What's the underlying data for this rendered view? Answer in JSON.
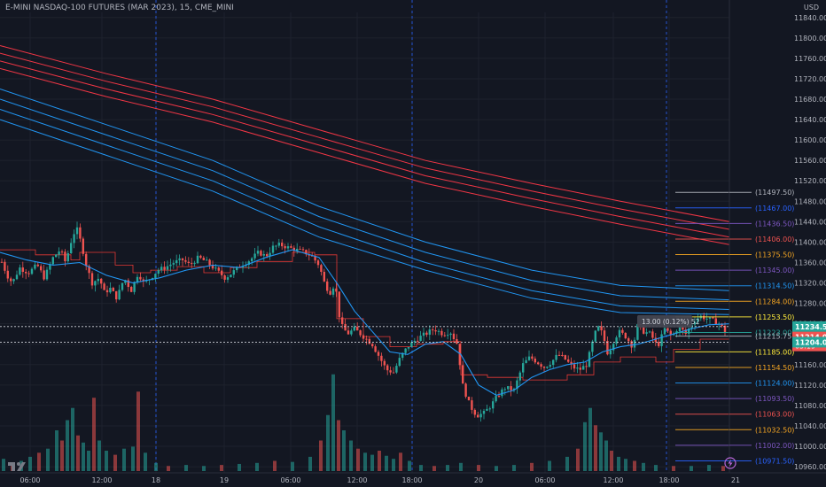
{
  "header": {
    "symbol_title": "E-MINI NASDAQ-100 FUTURES (MAR 2023), 15, CME_MINI",
    "currency": "USD"
  },
  "colors": {
    "background": "#131722",
    "bull": "#26a69a",
    "bear": "#ef5350",
    "ema_red": "#f23645",
    "ema_blue": "#2196f3",
    "vwap": "#e53935",
    "gold": "#f5a623",
    "yellow": "#ffeb3b",
    "purple": "#7e57c2",
    "session_line": "#2962ff"
  },
  "chart_data": {
    "type": "candlestick",
    "instrument": "E-MINI NASDAQ-100 FUTURES (MAR 2023), 15, CME_MINI",
    "y_axis": {
      "range": [
        10948,
        11850
      ],
      "ticks": [
        11840,
        11800,
        11760,
        11720,
        11680,
        11640,
        11600,
        11560,
        11520,
        11480,
        11440,
        11400,
        11360,
        11320,
        11280,
        11240,
        11200,
        11160,
        11120,
        11080,
        11040,
        11000,
        10960
      ]
    },
    "x_axis": {
      "ticks": [
        "06:00",
        "12:00",
        "18",
        "19",
        "06:00",
        "12:00",
        "18:00",
        "20",
        "06:00",
        "12:00",
        "18:00",
        "21"
      ]
    },
    "session_breaks": [
      "18",
      "18:00",
      "18:00"
    ],
    "price_path": [
      [
        0,
        11370
      ],
      [
        8,
        11335
      ],
      [
        14,
        11320
      ],
      [
        22,
        11350
      ],
      [
        32,
        11340
      ],
      [
        42,
        11355
      ],
      [
        50,
        11330
      ],
      [
        60,
        11370
      ],
      [
        68,
        11385
      ],
      [
        74,
        11360
      ],
      [
        80,
        11400
      ],
      [
        86,
        11430
      ],
      [
        92,
        11395
      ],
      [
        98,
        11350
      ],
      [
        104,
        11320
      ],
      [
        112,
        11330
      ],
      [
        118,
        11300
      ],
      [
        124,
        11310
      ],
      [
        132,
        11290
      ],
      [
        140,
        11330
      ],
      [
        148,
        11305
      ],
      [
        156,
        11340
      ],
      [
        162,
        11320
      ],
      [
        170,
        11330
      ],
      [
        178,
        11345
      ],
      [
        186,
        11350
      ],
      [
        196,
        11360
      ],
      [
        206,
        11365
      ],
      [
        214,
        11355
      ],
      [
        224,
        11370
      ],
      [
        234,
        11360
      ],
      [
        244,
        11345
      ],
      [
        254,
        11330
      ],
      [
        262,
        11340
      ],
      [
        272,
        11355
      ],
      [
        282,
        11365
      ],
      [
        292,
        11380
      ],
      [
        300,
        11372
      ],
      [
        308,
        11390
      ],
      [
        316,
        11395
      ],
      [
        324,
        11390
      ],
      [
        334,
        11385
      ],
      [
        344,
        11380
      ],
      [
        352,
        11372
      ],
      [
        360,
        11355
      ],
      [
        366,
        11320
      ],
      [
        372,
        11300
      ],
      [
        378,
        11320
      ],
      [
        384,
        11240
      ],
      [
        392,
        11220
      ],
      [
        400,
        11230
      ],
      [
        410,
        11215
      ],
      [
        420,
        11200
      ],
      [
        428,
        11175
      ],
      [
        436,
        11150
      ],
      [
        444,
        11145
      ],
      [
        452,
        11175
      ],
      [
        460,
        11195
      ],
      [
        470,
        11210
      ],
      [
        480,
        11220
      ],
      [
        490,
        11230
      ],
      [
        500,
        11220
      ],
      [
        508,
        11225
      ],
      [
        516,
        11200
      ],
      [
        522,
        11120
      ],
      [
        530,
        11080
      ],
      [
        538,
        11060
      ],
      [
        546,
        11065
      ],
      [
        554,
        11080
      ],
      [
        562,
        11100
      ],
      [
        570,
        11115
      ],
      [
        580,
        11110
      ],
      [
        590,
        11160
      ],
      [
        598,
        11175
      ],
      [
        606,
        11165
      ],
      [
        614,
        11155
      ],
      [
        622,
        11165
      ],
      [
        630,
        11180
      ],
      [
        638,
        11170
      ],
      [
        646,
        11155
      ],
      [
        654,
        11150
      ],
      [
        662,
        11160
      ],
      [
        668,
        11200
      ],
      [
        674,
        11235
      ],
      [
        680,
        11220
      ],
      [
        686,
        11180
      ],
      [
        692,
        11205
      ],
      [
        698,
        11225
      ],
      [
        706,
        11215
      ],
      [
        714,
        11195
      ],
      [
        720,
        11240
      ],
      [
        726,
        11225
      ],
      [
        734,
        11220
      ],
      [
        742,
        11195
      ],
      [
        750,
        11230
      ],
      [
        758,
        11215
      ],
      [
        766,
        11235
      ],
      [
        774,
        11220
      ],
      [
        782,
        11245
      ],
      [
        790,
        11255
      ],
      [
        798,
        11250
      ],
      [
        806,
        11245
      ],
      [
        812,
        11240
      ],
      [
        818,
        11225
      ],
      [
        822,
        11214
      ]
    ],
    "ema_red_bands": [
      {
        "values": [
          [
            0,
            11785
          ],
          [
            120,
            11730
          ],
          [
            240,
            11680
          ],
          [
            360,
            11620
          ],
          [
            480,
            11560
          ],
          [
            600,
            11515
          ],
          [
            700,
            11480
          ],
          [
            823,
            11440
          ]
        ]
      },
      {
        "values": [
          [
            0,
            11770
          ],
          [
            120,
            11715
          ],
          [
            240,
            11665
          ],
          [
            360,
            11605
          ],
          [
            480,
            11545
          ],
          [
            600,
            11500
          ],
          [
            700,
            11465
          ],
          [
            823,
            11425
          ]
        ]
      },
      {
        "values": [
          [
            0,
            11755
          ],
          [
            120,
            11700
          ],
          [
            240,
            11650
          ],
          [
            360,
            11590
          ],
          [
            480,
            11530
          ],
          [
            600,
            11485
          ],
          [
            700,
            11450
          ],
          [
            823,
            11410
          ]
        ]
      },
      {
        "values": [
          [
            0,
            11740
          ],
          [
            120,
            11685
          ],
          [
            240,
            11635
          ],
          [
            360,
            11575
          ],
          [
            480,
            11515
          ],
          [
            600,
            11470
          ],
          [
            700,
            11435
          ],
          [
            823,
            11395
          ]
        ]
      }
    ],
    "ema_blue_bands": [
      {
        "values": [
          [
            0,
            11700
          ],
          [
            120,
            11630
          ],
          [
            240,
            11560
          ],
          [
            360,
            11470
          ],
          [
            480,
            11400
          ],
          [
            600,
            11345
          ],
          [
            700,
            11315
          ],
          [
            823,
            11305
          ]
        ]
      },
      {
        "values": [
          [
            0,
            11680
          ],
          [
            120,
            11610
          ],
          [
            240,
            11540
          ],
          [
            360,
            11450
          ],
          [
            480,
            11380
          ],
          [
            600,
            11325
          ],
          [
            700,
            11295
          ],
          [
            823,
            11287
          ]
        ]
      },
      {
        "values": [
          [
            0,
            11660
          ],
          [
            120,
            11590
          ],
          [
            240,
            11520
          ],
          [
            360,
            11430
          ],
          [
            480,
            11360
          ],
          [
            600,
            11305
          ],
          [
            700,
            11275
          ],
          [
            823,
            11268
          ]
        ]
      },
      {
        "values": [
          [
            0,
            11640
          ],
          [
            120,
            11570
          ],
          [
            240,
            11500
          ],
          [
            360,
            11410
          ],
          [
            480,
            11345
          ],
          [
            600,
            11290
          ],
          [
            700,
            11262
          ],
          [
            823,
            11258
          ]
        ]
      }
    ],
    "fast_ma": [
      [
        0,
        11380
      ],
      [
        30,
        11365
      ],
      [
        60,
        11355
      ],
      [
        90,
        11360
      ],
      [
        120,
        11335
      ],
      [
        150,
        11320
      ],
      [
        180,
        11330
      ],
      [
        210,
        11345
      ],
      [
        240,
        11355
      ],
      [
        270,
        11350
      ],
      [
        300,
        11370
      ],
      [
        330,
        11385
      ],
      [
        360,
        11370
      ],
      [
        380,
        11320
      ],
      [
        400,
        11265
      ],
      [
        420,
        11225
      ],
      [
        440,
        11185
      ],
      [
        460,
        11180
      ],
      [
        480,
        11200
      ],
      [
        500,
        11205
      ],
      [
        520,
        11180
      ],
      [
        540,
        11120
      ],
      [
        560,
        11100
      ],
      [
        580,
        11110
      ],
      [
        600,
        11135
      ],
      [
        620,
        11150
      ],
      [
        640,
        11160
      ],
      [
        660,
        11165
      ],
      [
        680,
        11185
      ],
      [
        700,
        11195
      ],
      [
        720,
        11200
      ],
      [
        740,
        11210
      ],
      [
        760,
        11220
      ],
      [
        780,
        11230
      ],
      [
        800,
        11238
      ],
      [
        823,
        11240
      ]
    ],
    "vwap_steps": [
      [
        0,
        11385
      ],
      [
        40,
        11375
      ],
      [
        80,
        11365
      ],
      [
        90,
        11380
      ],
      [
        130,
        11355
      ],
      [
        150,
        11340
      ],
      [
        170,
        11345
      ],
      [
        200,
        11352
      ],
      [
        230,
        11340
      ],
      [
        260,
        11350
      ],
      [
        290,
        11362
      ],
      [
        330,
        11380
      ],
      [
        355,
        11375
      ],
      [
        380,
        11250
      ],
      [
        410,
        11215
      ],
      [
        440,
        11195
      ],
      [
        470,
        11200
      ],
      [
        500,
        11205
      ],
      [
        520,
        11140
      ],
      [
        550,
        11135
      ],
      [
        590,
        11130
      ],
      [
        640,
        11140
      ],
      [
        670,
        11165
      ],
      [
        700,
        11175
      ],
      [
        740,
        11165
      ],
      [
        760,
        11190
      ],
      [
        790,
        11210
      ],
      [
        823,
        11220
      ]
    ],
    "volume_bars": [
      [
        4,
        0.12
      ],
      [
        14,
        0.08
      ],
      [
        24,
        0.1
      ],
      [
        34,
        0.14
      ],
      [
        44,
        0.18
      ],
      [
        54,
        0.22
      ],
      [
        64,
        0.4
      ],
      [
        70,
        0.3
      ],
      [
        76,
        0.5
      ],
      [
        82,
        0.62
      ],
      [
        88,
        0.35
      ],
      [
        94,
        0.28
      ],
      [
        100,
        0.2
      ],
      [
        106,
        0.72
      ],
      [
        112,
        0.3
      ],
      [
        120,
        0.2
      ],
      [
        130,
        0.16
      ],
      [
        140,
        0.22
      ],
      [
        150,
        0.24
      ],
      [
        156,
        0.78
      ],
      [
        164,
        0.18
      ],
      [
        176,
        0.08
      ],
      [
        190,
        0.05
      ],
      [
        210,
        0.06
      ],
      [
        230,
        0.05
      ],
      [
        250,
        0.06
      ],
      [
        270,
        0.07
      ],
      [
        290,
        0.08
      ],
      [
        310,
        0.1
      ],
      [
        330,
        0.09
      ],
      [
        350,
        0.14
      ],
      [
        362,
        0.3
      ],
      [
        370,
        0.55
      ],
      [
        376,
        0.95
      ],
      [
        382,
        0.5
      ],
      [
        388,
        0.4
      ],
      [
        396,
        0.3
      ],
      [
        404,
        0.22
      ],
      [
        412,
        0.18
      ],
      [
        420,
        0.16
      ],
      [
        428,
        0.2
      ],
      [
        436,
        0.15
      ],
      [
        444,
        0.12
      ],
      [
        452,
        0.18
      ],
      [
        462,
        0.1
      ],
      [
        475,
        0.06
      ],
      [
        490,
        0.05
      ],
      [
        505,
        0.06
      ],
      [
        520,
        0.08
      ],
      [
        540,
        0.06
      ],
      [
        560,
        0.05
      ],
      [
        580,
        0.06
      ],
      [
        600,
        0.08
      ],
      [
        620,
        0.1
      ],
      [
        640,
        0.14
      ],
      [
        652,
        0.22
      ],
      [
        660,
        0.48
      ],
      [
        666,
        0.62
      ],
      [
        672,
        0.45
      ],
      [
        678,
        0.38
      ],
      [
        684,
        0.3
      ],
      [
        690,
        0.2
      ],
      [
        698,
        0.14
      ],
      [
        706,
        0.12
      ],
      [
        716,
        0.1
      ],
      [
        726,
        0.08
      ],
      [
        740,
        0.06
      ],
      [
        760,
        0.05
      ],
      [
        780,
        0.05
      ],
      [
        800,
        0.06
      ],
      [
        816,
        0.05
      ]
    ],
    "level_lines": [
      {
        "price": 11497.5,
        "label": "(11497.50)",
        "color": "#b2b5be",
        "x0": 762
      },
      {
        "price": 11467.0,
        "label": "(11467.00)",
        "color": "#2962ff",
        "x0": 762
      },
      {
        "price": 11436.5,
        "label": "(11436.50)",
        "color": "#7e57c2",
        "x0": 762
      },
      {
        "price": 11406.0,
        "label": "(11406.00)",
        "color": "#ef5350",
        "x0": 762
      },
      {
        "price": 11375.5,
        "label": "(11375.50)",
        "color": "#f5a623",
        "x0": 762
      },
      {
        "price": 11345.0,
        "label": "(11345.00)",
        "color": "#7e57c2",
        "x0": 762
      },
      {
        "price": 11314.5,
        "label": "(11314.50)",
        "color": "#2196f3",
        "x0": 762
      },
      {
        "price": 11284.0,
        "label": "(11284.00)",
        "color": "#f5a623",
        "x0": 762
      },
      {
        "price": 11253.5,
        "label": "(11253.50)",
        "color": "#ffeb3b",
        "x0": 762
      },
      {
        "price": 11223.0,
        "label": "(11223.00)",
        "color": "#26a69a",
        "x0": 762
      },
      {
        "price": 11215.75,
        "label": "(11215.75)",
        "color": "#b2b5be",
        "x0": 762
      },
      {
        "price": 11185.0,
        "label": "(11185.00)",
        "color": "#ffeb3b",
        "x0": 762
      },
      {
        "price": 11154.5,
        "label": "(11154.50)",
        "color": "#f5a623",
        "x0": 762
      },
      {
        "price": 11124.0,
        "label": "(11124.00)",
        "color": "#2196f3",
        "x0": 762
      },
      {
        "price": 11093.5,
        "label": "(11093.50)",
        "color": "#7e57c2",
        "x0": 762
      },
      {
        "price": 11063.0,
        "label": "(11063.00)",
        "color": "#ef5350",
        "x0": 762
      },
      {
        "price": 11032.5,
        "label": "(11032.50)",
        "color": "#f5a623",
        "x0": 762
      },
      {
        "price": 11002.0,
        "label": "(11002.00)",
        "color": "#7e57c2",
        "x0": 762
      },
      {
        "price": 10971.5,
        "label": "(10971.50)",
        "color": "#2962ff",
        "x0": 762
      }
    ],
    "range_box": {
      "top": 11234.5,
      "bottom": 11204.0
    },
    "measure_label": "13.00 (0.12%) 52",
    "price_tags": {
      "upper": "11234.50",
      "last": "11214.00",
      "countdown": "05:19",
      "lower": "11204.00"
    }
  }
}
